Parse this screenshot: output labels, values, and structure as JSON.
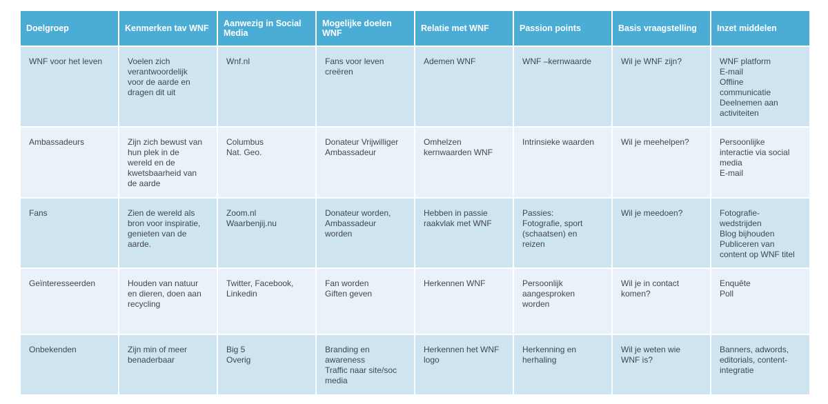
{
  "headers": [
    "Doelgroep",
    "Kenmerken  tav WNF",
    "Aanwezig in Social Media",
    "Mogelijke doelen WNF",
    "Relatie met WNF",
    "Passion points",
    "Basis vraagstelling",
    "Inzet middelen"
  ],
  "rows": [
    [
      "WNF voor het leven",
      "Voelen zich\nverantwoordelijk\nvoor de aarde en\ndragen dit uit",
      "Wnf.nl",
      "Fans voor leven\ncreëren",
      "Ademen WNF",
      "WNF –kernwaarde",
      "Wil je WNF zijn?",
      "WNF platform\nE-mail\nOffline\ncommunicatie\nDeelnemen aan\nactiviteiten"
    ],
    [
      "Ambassadeurs",
      "Zijn zich bewust van\nhun plek in de\nwereld en de\nkwetsbaarheid van\nde aarde",
      "Columbus\nNat. Geo.",
      "Donateur  Vrijwilliger\nAmbassadeur",
      "Omhelzen\nkernwaarden WNF",
      "Intrinsieke waarden",
      "Wil je meehelpen?",
      "Persoonlijke\ninteractie via social\nmedia\nE-mail"
    ],
    [
      "Fans",
      "Zien de wereld als\nbron voor inspiratie,\ngenieten  van de\naarde.",
      "Zoom.nl\nWaarbenjij.nu",
      "Donateur  worden,\nAmbassadeur\nworden",
      "Hebben in passie\nraakvlak met WNF",
      "Passies:\nFotografie, sport\n(schaatsen) en\nreizen",
      "Wil je meedoen?",
      "Fotografie-\nwedstrijden\nBlog bijhouden\nPubliceren van\ncontent op WNF titel"
    ],
    [
      "Geïnteresseerden",
      "Houden van natuur\nen dieren, doen aan\nrecycling",
      "Twitter, Facebook,\nLinkedin",
      "Fan worden\nGiften geven",
      "Herkennen WNF",
      "Persoonlijk\naangesproken\nworden",
      "Wil je in contact\nkomen?",
      "Enquête\nPoll"
    ],
    [
      "Onbekenden",
      "Zijn min of meer\nbenaderbaar",
      "Big 5\nOverig",
      "Branding en\nawareness\nTraffic naar   site/soc\nmedia",
      "Herkennen het WNF\nlogo",
      "Herkenning  en\nherhaling",
      "Wil je weten wie\nWNF is?",
      "Banners, adwords,\neditorials, content-\nintegratie"
    ]
  ]
}
